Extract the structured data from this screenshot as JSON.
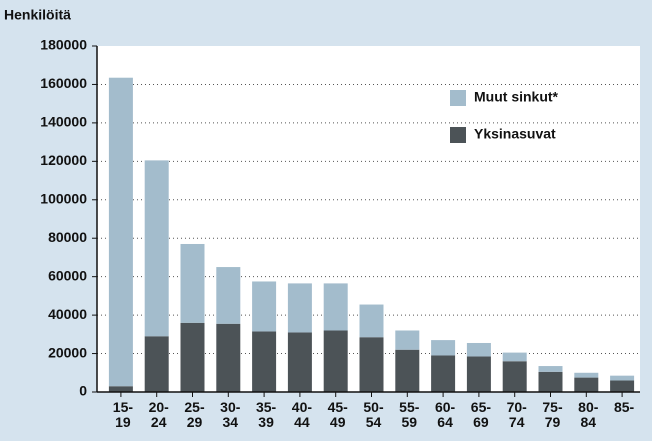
{
  "chart_data": {
    "type": "stacked_bar",
    "y_axis_label": "Henkilöitä",
    "categories": [
      [
        "15-",
        "19"
      ],
      [
        "20-",
        "24"
      ],
      [
        "25-",
        "29"
      ],
      [
        "30-",
        "34"
      ],
      [
        "35-",
        "39"
      ],
      [
        "40-",
        "44"
      ],
      [
        "45-",
        "49"
      ],
      [
        "50-",
        "54"
      ],
      [
        "55-",
        "59"
      ],
      [
        "60-",
        "64"
      ],
      [
        "65-",
        "69"
      ],
      [
        "70-",
        "74"
      ],
      [
        "75-",
        "79"
      ],
      [
        "80-",
        "84"
      ],
      [
        "85-"
      ]
    ],
    "series": [
      {
        "name": "Yksinasuvat",
        "color": "#4c5357",
        "values": [
          3000,
          29000,
          36000,
          35500,
          31500,
          31000,
          32000,
          28500,
          22000,
          19000,
          18500,
          16000,
          10500,
          7500,
          6000
        ]
      },
      {
        "name": "Muut sinkut*",
        "color": "#a3bccc",
        "values": [
          160500,
          91500,
          41000,
          29500,
          26000,
          25500,
          24500,
          17000,
          10000,
          8000,
          7000,
          4500,
          3000,
          2500,
          2500
        ]
      }
    ],
    "ylim": [
      0,
      180000
    ],
    "yticks": [
      0,
      20000,
      40000,
      60000,
      80000,
      100000,
      120000,
      140000,
      160000,
      180000
    ],
    "grid": true,
    "legend": "upper right"
  }
}
